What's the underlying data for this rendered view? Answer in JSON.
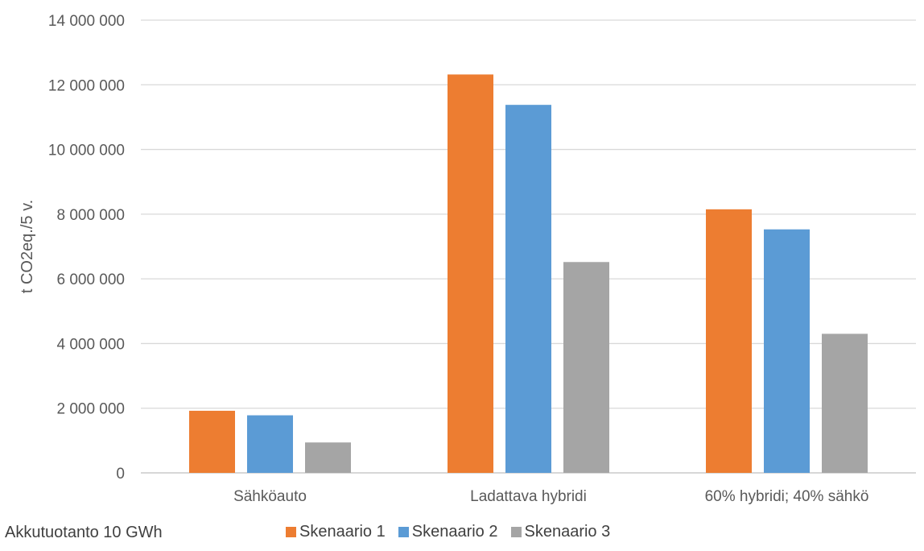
{
  "chart_data": {
    "type": "bar",
    "categories": [
      "Sähköauto",
      "Ladattava hybridi",
      "60% hybridi; 40% sähkö"
    ],
    "series": [
      {
        "name": "Skenaario 1",
        "color": "#ed7d31",
        "values": [
          1920000,
          12320000,
          8150000
        ]
      },
      {
        "name": "Skenaario 2",
        "color": "#5b9bd5",
        "values": [
          1780000,
          11380000,
          7530000
        ]
      },
      {
        "name": "Skenaario 3",
        "color": "#a5a5a5",
        "values": [
          940000,
          6520000,
          4300000
        ]
      }
    ],
    "title": "",
    "xlabel": "",
    "ylabel": "t CO2eq./5 v.",
    "ylim": [
      0,
      14000000
    ],
    "yticks": [
      0,
      2000000,
      4000000,
      6000000,
      8000000,
      10000000,
      12000000,
      14000000
    ],
    "ytick_labels": [
      "0",
      "2 000 000",
      "4 000 000",
      "6 000 000",
      "8 000 000",
      "10 000 000",
      "12 000 000",
      "14 000 000"
    ],
    "grid": true,
    "legend_position": "bottom"
  },
  "footnote": "Akkutuotanto 10 GWh"
}
